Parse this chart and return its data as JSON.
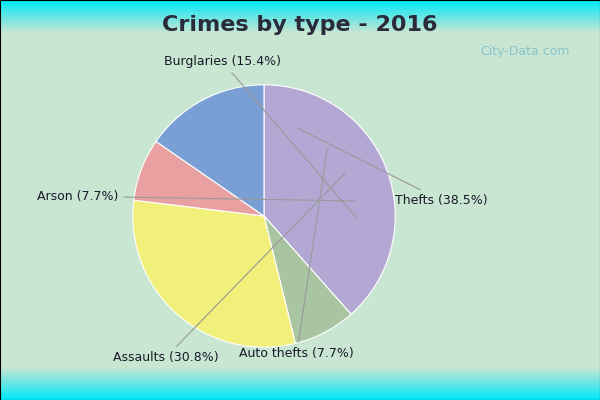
{
  "title": "Crimes by type - 2016",
  "slices": [
    {
      "label": "Thefts (38.5%)",
      "value": 38.5,
      "color": "#b3a8d4"
    },
    {
      "label": "Auto thefts (7.7%)",
      "value": 7.7,
      "color": "#a8c4a0"
    },
    {
      "label": "Assaults (30.8%)",
      "value": 30.8,
      "color": "#f0f07a"
    },
    {
      "label": "Arson (7.7%)",
      "value": 7.7,
      "color": "#e8a0a0"
    },
    {
      "label": "Burglaries (15.4%)",
      "value": 15.4,
      "color": "#7a9fd4"
    }
  ],
  "border_color": "#00e8f8",
  "bg_center": "#d8edd8",
  "title_fontsize": 16,
  "label_fontsize": 9,
  "watermark": "City-Data.com",
  "startangle": 90,
  "title_color": "#2a2a3a",
  "label_color": "#1a1a2a"
}
